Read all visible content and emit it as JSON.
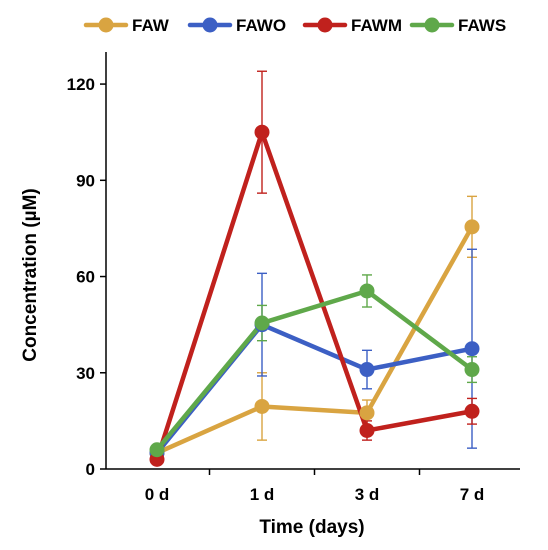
{
  "chart_data": {
    "type": "line",
    "title": "",
    "xlabel": "Time (days)",
    "ylabel": "Concentration (µM)",
    "categories": [
      "0 d",
      "1 d",
      "3 d",
      "7 d"
    ],
    "ylim": [
      0,
      130
    ],
    "yticks": [
      0,
      30,
      60,
      90,
      120
    ],
    "grid": false,
    "legend_position": "top",
    "series": [
      {
        "name": "FAW",
        "color": "#d9a441",
        "values": [
          5,
          19.5,
          17.5,
          75.5
        ],
        "err": [
          1,
          10.5,
          4,
          9.5
        ]
      },
      {
        "name": "FAWO",
        "color": "#3c5fc4",
        "values": [
          5,
          45,
          31,
          37.5
        ],
        "err": [
          1,
          16,
          6,
          31
        ]
      },
      {
        "name": "FAWM",
        "color": "#c0211d",
        "values": [
          3,
          105,
          12,
          18
        ],
        "err": [
          1,
          19,
          3,
          4
        ]
      },
      {
        "name": "FAWS",
        "color": "#5fa84a",
        "values": [
          6,
          45.5,
          55.5,
          31
        ],
        "err": [
          1,
          5.5,
          5,
          4
        ]
      }
    ]
  }
}
